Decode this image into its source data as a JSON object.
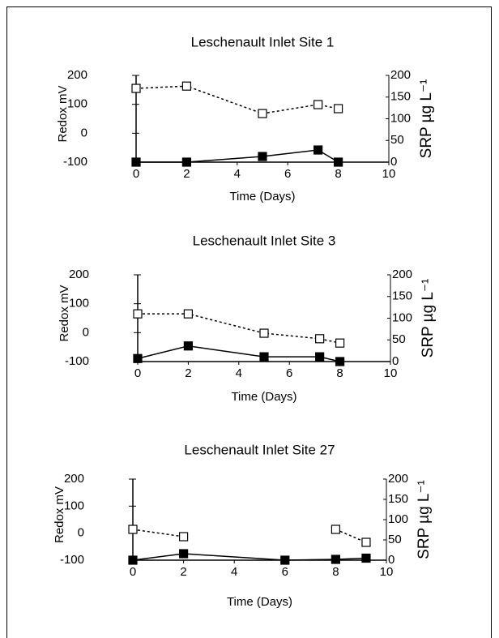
{
  "chart_data": [
    {
      "type": "line",
      "title": "Leschenault Inlet Site 1",
      "xlabel": "Time (Days)",
      "ylabel": "Redox mV",
      "y2label": "SRP µg L⁻¹",
      "x": [
        0,
        2,
        5,
        7.2,
        8
      ],
      "xlim": [
        0,
        10
      ],
      "xticks": [
        0,
        2,
        4,
        6,
        8,
        10
      ],
      "ylim": [
        -100,
        200
      ],
      "yticks": [
        -100,
        0,
        100,
        200
      ],
      "y2lim": [
        0,
        200
      ],
      "y2ticks": [
        0,
        50,
        100,
        150,
        200
      ],
      "series": [
        {
          "color": "#000000",
          "marker_fill": "#ffffff",
          "dashed": true,
          "values": [
            155,
            163,
            68,
            99,
            85
          ]
        },
        {
          "color": "#000000",
          "marker_fill": "#000000",
          "dashed": false,
          "axis": "y2",
          "values": [
            0,
            0,
            13,
            28,
            0
          ]
        }
      ]
    },
    {
      "type": "line",
      "title": "Leschenault Inlet Site 3",
      "xlabel": "Time (Days)",
      "ylabel": "Redox mV",
      "y2label": "SRP µg L⁻¹",
      "x": [
        0,
        2,
        5,
        7.2,
        8
      ],
      "xlim": [
        0,
        10
      ],
      "xticks": [
        0,
        2,
        4,
        6,
        8,
        10
      ],
      "ylim": [
        -100,
        200
      ],
      "yticks": [
        -100,
        0,
        100,
        200
      ],
      "y2lim": [
        0,
        200
      ],
      "y2ticks": [
        0,
        50,
        100,
        150,
        200
      ],
      "series": [
        {
          "color": "#000000",
          "marker_fill": "#ffffff",
          "dashed": true,
          "values": [
            65,
            65,
            -2,
            -21,
            -36
          ]
        },
        {
          "color": "#000000",
          "marker_fill": "#000000",
          "dashed": false,
          "axis": "y2",
          "values": [
            7,
            36,
            11,
            11,
            0
          ]
        }
      ]
    },
    {
      "type": "line",
      "title": "Leschenault Inlet Site 27",
      "xlabel": "Time (Days)",
      "ylabel": "Redox mV",
      "y2label": "SRP µg L⁻¹",
      "x": [
        0,
        2,
        6,
        8,
        9.2
      ],
      "xlim": [
        0,
        10
      ],
      "xticks": [
        0,
        2,
        4,
        6,
        8,
        10
      ],
      "ylim": [
        -100,
        200
      ],
      "yticks": [
        -100,
        0,
        100,
        200
      ],
      "y2lim": [
        0,
        200
      ],
      "y2ticks": [
        0,
        50,
        100,
        150,
        200
      ],
      "series": [
        {
          "color": "#000000",
          "marker_fill": "#ffffff",
          "dashed": true,
          "values": [
            14,
            -13,
            null,
            14,
            -34
          ]
        },
        {
          "color": "#000000",
          "marker_fill": "#000000",
          "dashed": false,
          "axis": "y2",
          "values": [
            0,
            16,
            0,
            2,
            5
          ]
        }
      ]
    }
  ]
}
